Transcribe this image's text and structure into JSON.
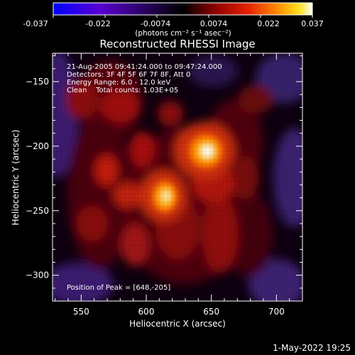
{
  "colorbar": {
    "ticks": [
      "-0.037",
      "-0.022",
      "-0.0074",
      "0.0074",
      "0.022",
      "0.037"
    ],
    "units": "(photons cm⁻² s⁻¹ asec⁻²)",
    "range": [
      -0.037,
      0.037
    ],
    "colormap_stops": [
      "#0000ff",
      "#6a00c8",
      "#000000",
      "#7a0000",
      "#e01a00",
      "#ff8000",
      "#ffe000",
      "#ffffff"
    ]
  },
  "plot": {
    "title": "Reconstructed RHESSI Image",
    "xlabel": "Heliocentric X (arcsec)",
    "ylabel": "Heliocentric Y (arcsec)",
    "annotations": [
      "21-Aug-2005 09:41:24.000 to 09:47:24.000",
      "Detectors: 3F 4F 5F 6F 7F 8F, Att 0",
      "Energy Range: 6.0 - 12.0 keV",
      "Clean    Total counts: 1.03E+05"
    ],
    "peak_label": "Position of Peak = [648,-205]"
  },
  "footer": {
    "timestamp": "1-May-2022 19:25"
  },
  "chart_data": {
    "type": "heatmap",
    "title": "Reconstructed RHESSI Image",
    "xlabel": "Heliocentric X (arcsec)",
    "ylabel": "Heliocentric Y (arcsec)",
    "xlim": [
      528,
      720
    ],
    "ylim": [
      -320,
      -128
    ],
    "xticks": [
      550,
      600,
      650,
      700
    ],
    "yticks": [
      -150,
      -200,
      -250,
      -300
    ],
    "colorbar_range": [
      -0.037,
      0.037
    ],
    "peak": [
      648,
      -205
    ],
    "sources": [
      {
        "x": 648,
        "y": -205,
        "relative_intensity": 1.0
      },
      {
        "x": 617,
        "y": -240,
        "relative_intensity": 0.85
      }
    ]
  }
}
